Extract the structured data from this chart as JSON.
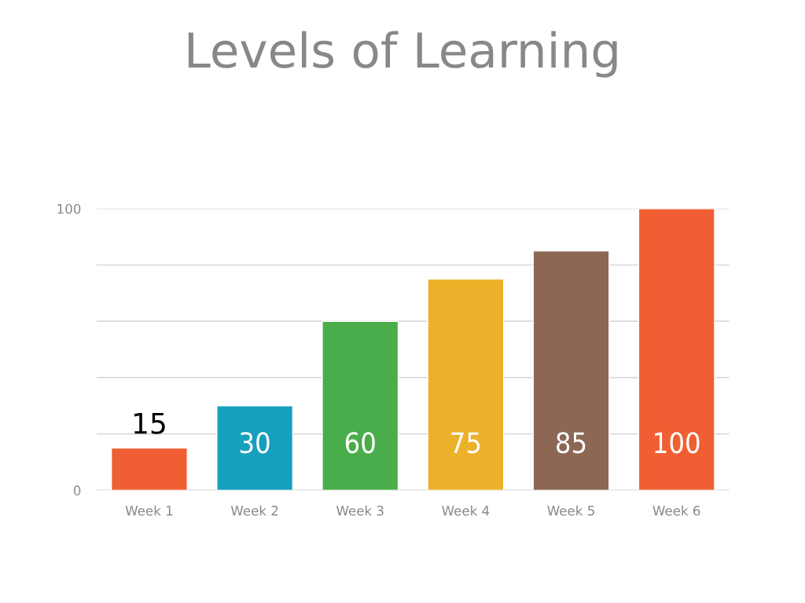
{
  "chart_data": {
    "type": "bar",
    "title": "Levels of Learning",
    "categories": [
      "Week 1",
      "Week 2",
      "Week 3",
      "Week 4",
      "Week 5",
      "Week 6"
    ],
    "values": [
      15,
      30,
      60,
      75,
      85,
      100
    ],
    "colors": [
      "#f05f33",
      "#16a0bd",
      "#4aad4b",
      "#ecb12a",
      "#8b6754",
      "#f05f33"
    ],
    "ylim": [
      0,
      100
    ],
    "yticks": [
      0,
      {
        "value": 20,
        "label": null
      },
      {
        "value": 40,
        "label": null
      },
      {
        "value": 60,
        "label": null
      },
      {
        "value": 80,
        "label": null
      },
      100
    ],
    "grid": "y",
    "data_labels": true,
    "legend": false
  }
}
